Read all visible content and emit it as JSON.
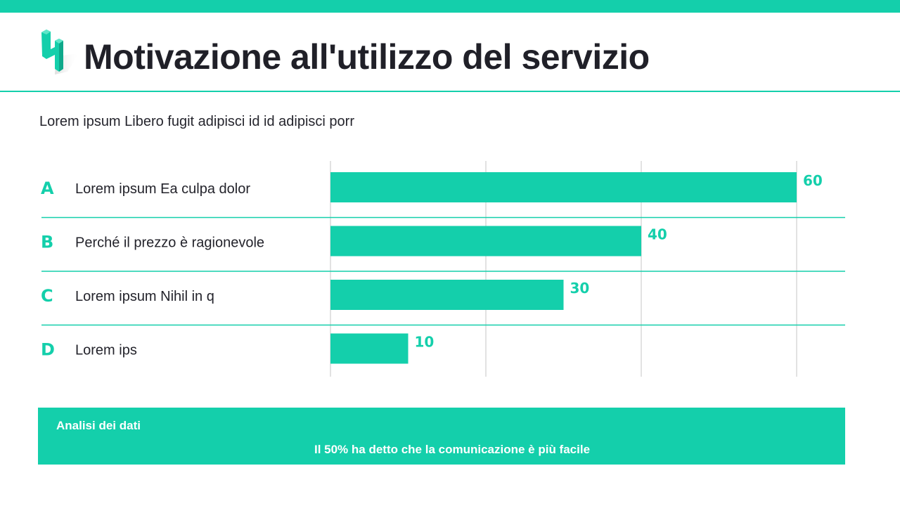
{
  "header": {
    "title": "Motivazione all'utilizzo del servizio"
  },
  "subtitle": "Lorem ipsum Libero fugit adipisci id id adipisci porr",
  "chart_data": {
    "type": "bar",
    "orientation": "horizontal",
    "letters": [
      "A",
      "B",
      "C",
      "D"
    ],
    "categories": [
      "Lorem ipsum Ea culpa dolor",
      "Perché il prezzo è ragionevole",
      "Lorem ipsum Nihil in q",
      "Lorem ips"
    ],
    "values": [
      60,
      40,
      30,
      10
    ],
    "data_labels": [
      "60",
      "40",
      "30",
      "10"
    ],
    "xlim": [
      0,
      60
    ],
    "grid": true,
    "grid_step": 20,
    "bar_color": "#14cfab"
  },
  "footer": {
    "title": "Analisi dei dati",
    "message": "Il 50% ha detto che la comunicazione è più facile"
  },
  "colors": {
    "accent": "#14cfab",
    "text": "#23232b"
  }
}
